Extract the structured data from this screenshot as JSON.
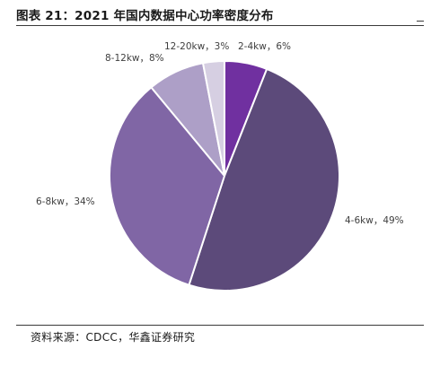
{
  "header": {
    "title": "图表 21：2021 年国内数据中心功率密度分布"
  },
  "footer": {
    "source": "资料来源：CDCC，华鑫证券研究"
  },
  "chart_data": {
    "type": "pie",
    "title": "",
    "start_angle_deg": 0,
    "direction": "clockwise",
    "slices": [
      {
        "label": "2-4kw，6%",
        "name": "2-4kw",
        "value": 6,
        "color": "#7030a0"
      },
      {
        "label": "4-6kw，49%",
        "name": "4-6kw",
        "value": 49,
        "color": "#5c4a7a"
      },
      {
        "label": "6-8kw，34%",
        "name": "6-8kw",
        "value": 34,
        "color": "#8066a5"
      },
      {
        "label": "8-12kw，8%",
        "name": "8-12kw",
        "value": 8,
        "color": "#ad9fc7"
      },
      {
        "label": "12-20kw，3%",
        "name": "12-20kw",
        "value": 3,
        "color": "#d6cfe2"
      }
    ]
  }
}
